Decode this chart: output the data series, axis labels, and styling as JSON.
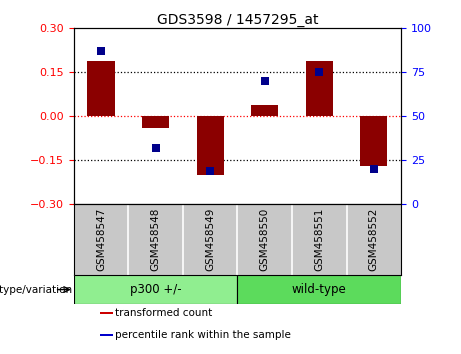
{
  "title": "GDS3598 / 1457295_at",
  "samples": [
    "GSM458547",
    "GSM458548",
    "GSM458549",
    "GSM458550",
    "GSM458551",
    "GSM458552"
  ],
  "red_values": [
    0.19,
    -0.04,
    -0.2,
    0.04,
    0.19,
    -0.17
  ],
  "blue_values_pct": [
    87,
    32,
    19,
    70,
    75,
    20
  ],
  "ylim_left": [
    -0.3,
    0.3
  ],
  "ylim_right": [
    0,
    100
  ],
  "yticks_left": [
    -0.3,
    -0.15,
    0,
    0.15,
    0.3
  ],
  "yticks_right": [
    0,
    25,
    50,
    75,
    100
  ],
  "bar_color": "#8B0000",
  "dot_color": "#00008B",
  "bar_width": 0.5,
  "dot_size": 40,
  "genotype_label": "genotype/variation",
  "group_info": [
    {
      "start": 0,
      "end": 2,
      "label": "p300 +/-",
      "color": "#90EE90"
    },
    {
      "start": 3,
      "end": 5,
      "label": "wild-type",
      "color": "#5CDB5C"
    }
  ],
  "legend_items": [
    {
      "color": "#CC0000",
      "label": "transformed count"
    },
    {
      "color": "#0000CC",
      "label": "percentile rank within the sample"
    }
  ],
  "sample_bg": "#C8C8C8",
  "plot_bg": "#ffffff"
}
